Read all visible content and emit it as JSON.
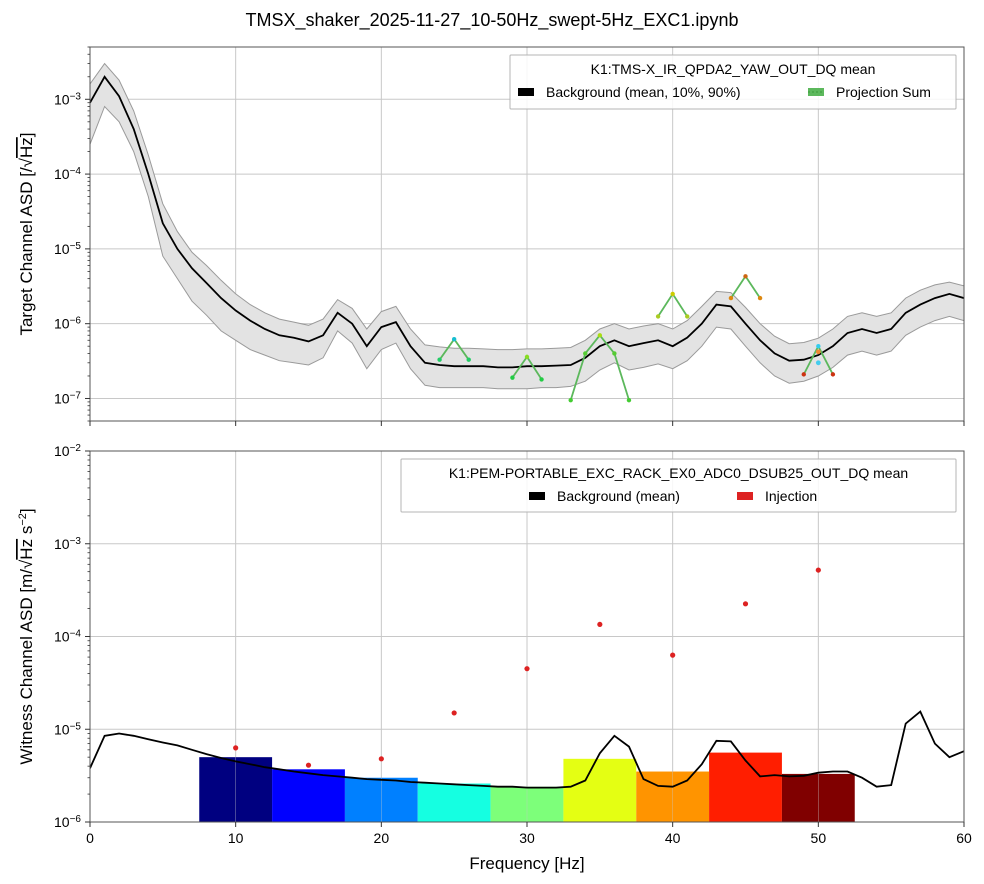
{
  "figure": {
    "title": "TMSX_shaker_2025-11-27_10-50Hz_swept-5Hz_EXC1.ipynb"
  },
  "chart_data": [
    {
      "type": "line",
      "panel": "top",
      "ylabel_main": "Target Channel ASD [/",
      "ylabel_sqrt": "Hz",
      "ylabel_end": "]",
      "xlim": [
        0,
        60
      ],
      "ylim": [
        5e-08,
        0.005
      ],
      "yscale": "log",
      "grid": true,
      "y_ticks": [
        {
          "base": "10",
          "exp": "−7",
          "v": 1e-07
        },
        {
          "base": "10",
          "exp": "−6",
          "v": 1e-06
        },
        {
          "base": "10",
          "exp": "−5",
          "v": 1e-05
        },
        {
          "base": "10",
          "exp": "−4",
          "v": 0.0001
        },
        {
          "base": "10",
          "exp": "−3",
          "v": 0.001
        }
      ],
      "legend": {
        "placement": "top-right",
        "title": "K1:TMS-X_IR_QPDA2_YAW_OUT_DQ mean",
        "entries": [
          {
            "label": "Background (mean, 10%, 90%)",
            "color": "#000000"
          },
          {
            "label": "Projection Sum",
            "color": "#5cb85c"
          }
        ]
      },
      "background": {
        "x": [
          0,
          1,
          2,
          3,
          4,
          5,
          6,
          7,
          8,
          9,
          10,
          11,
          12,
          13,
          14,
          15,
          16,
          17,
          18,
          19,
          20,
          21,
          22,
          23,
          24,
          25,
          26,
          27,
          28,
          29,
          30,
          31,
          32,
          33,
          34,
          35,
          36,
          37,
          38,
          39,
          40,
          41,
          42,
          43,
          44,
          45,
          46,
          47,
          48,
          49,
          50,
          51,
          52,
          53,
          54,
          55,
          56,
          57,
          58,
          59,
          60
        ],
        "mean": [
          0.0009,
          0.002,
          0.0011,
          0.0004,
          0.0001,
          2.2e-05,
          1e-05,
          5.5e-06,
          3.5e-06,
          2.2e-06,
          1.5e-06,
          1.1e-06,
          8.5e-07,
          7e-07,
          6.5e-07,
          5.8e-07,
          7e-07,
          1.4e-06,
          1e-06,
          5e-07,
          9e-07,
          1.05e-06,
          5e-07,
          3e-07,
          2.8e-07,
          2.7e-07,
          2.7e-07,
          2.7e-07,
          2.6e-07,
          2.6e-07,
          2.7e-07,
          2.7e-07,
          2.75e-07,
          2.8e-07,
          3.5e-07,
          5e-07,
          6e-07,
          5e-07,
          5.5e-07,
          6e-07,
          5e-07,
          6.5e-07,
          1e-06,
          1.8e-06,
          1.7e-06,
          1e-06,
          6e-07,
          4e-07,
          3.2e-07,
          3.3e-07,
          3.8e-07,
          5e-07,
          7.5e-07,
          8.5e-07,
          7.5e-07,
          8.5e-07,
          1.4e-06,
          1.8e-06,
          2.2e-06,
          2.5e-06,
          2.2e-06
        ],
        "p10": [
          0.00025,
          0.0008,
          0.0005,
          0.0002,
          5e-05,
          8e-06,
          4e-06,
          2e-06,
          1.3e-06,
          8e-07,
          6e-07,
          4.5e-07,
          3.8e-07,
          3.2e-07,
          3e-07,
          2.8e-07,
          3.5e-07,
          8e-07,
          5.5e-07,
          2.5e-07,
          4.5e-07,
          5.5e-07,
          2.5e-07,
          1.5e-07,
          1.4e-07,
          1.4e-07,
          1.4e-07,
          1.4e-07,
          1.35e-07,
          1.35e-07,
          1.35e-07,
          1.4e-07,
          1.4e-07,
          1.45e-07,
          1.7e-07,
          2.4e-07,
          3e-07,
          2.4e-07,
          2.6e-07,
          2.9e-07,
          2.5e-07,
          3.2e-07,
          5e-07,
          9e-07,
          8.5e-07,
          5e-07,
          3e-07,
          2e-07,
          1.6e-07,
          1.7e-07,
          2e-07,
          2.6e-07,
          3.8e-07,
          4.3e-07,
          3.8e-07,
          4.3e-07,
          7e-07,
          9e-07,
          1.1e-06,
          1.25e-06,
          1.1e-06
        ],
        "p90": [
          0.0016,
          0.003,
          0.0018,
          0.0007,
          0.00018,
          4e-05,
          1.7e-05,
          9e-06,
          6e-06,
          3.8e-06,
          2.5e-06,
          1.8e-06,
          1.4e-06,
          1.15e-06,
          1.05e-06,
          9.5e-07,
          1.15e-06,
          2.1e-06,
          1.6e-06,
          8.5e-07,
          1.45e-06,
          1.7e-06,
          8.5e-07,
          5.2e-07,
          4.9e-07,
          4.7e-07,
          4.7e-07,
          4.6e-07,
          4.5e-07,
          4.5e-07,
          4.6e-07,
          4.6e-07,
          4.7e-07,
          4.8e-07,
          6e-07,
          8.5e-07,
          1e-06,
          8.5e-07,
          9.3e-07,
          1e-06,
          8.5e-07,
          1.1e-06,
          1.7e-06,
          2.7e-06,
          2.6e-06,
          1.65e-06,
          1e-06,
          6.8e-07,
          5.4e-07,
          5.6e-07,
          6.4e-07,
          8.5e-07,
          1.25e-06,
          1.4e-06,
          1.25e-06,
          1.4e-06,
          2.2e-06,
          2.8e-06,
          3.3e-06,
          3.6e-06,
          3.2e-06
        ]
      },
      "projection_groups": [
        {
          "x": [
            24,
            25,
            26
          ],
          "y": [
            3.3e-07,
            6.2e-07,
            3.3e-07
          ],
          "dot_colors": [
            "#22cc66",
            "#17bed0",
            "#22cc66"
          ]
        },
        {
          "x": [
            29,
            30,
            31
          ],
          "y": [
            1.9e-07,
            3.6e-07,
            1.8e-07
          ],
          "dot_colors": [
            "#22cc44",
            "#88dd22",
            "#22cc44"
          ]
        },
        {
          "x": [
            33,
            34,
            35,
            36,
            37
          ],
          "y": [
            9.5e-08,
            4e-07,
            7e-07,
            4e-07,
            9.5e-08
          ],
          "dot_colors": [
            "#44cc33",
            "#55cc33",
            "#aadd11",
            "#55cc33",
            "#44cc33"
          ]
        },
        {
          "x": [
            39,
            40,
            41
          ],
          "y": [
            1.25e-06,
            2.5e-06,
            1.25e-06
          ],
          "dot_colors": [
            "#aacc22",
            "#cccc00",
            "#aacc22"
          ]
        },
        {
          "x": [
            44,
            45,
            46
          ],
          "y": [
            2.2e-06,
            4.3e-06,
            2.2e-06
          ],
          "dot_colors": [
            "#dd8811",
            "#cc6611",
            "#dd8811"
          ]
        },
        {
          "x": [
            49,
            50,
            51
          ],
          "y": [
            2.1e-07,
            5e-07,
            2.1e-07
          ],
          "dot_colors": [
            "#cc3311",
            "#33ccee",
            "#cc3311"
          ]
        }
      ],
      "extra_points": [
        {
          "x": 50,
          "y": 3e-07,
          "color": "#44ccee"
        },
        {
          "x": 50,
          "y": 4.2e-07,
          "color": "#ee8833"
        }
      ]
    },
    {
      "type": "bar",
      "panel": "bottom",
      "ylabel_main": "Witness Channel ASD [m/",
      "ylabel_sqrt": "Hz",
      "ylabel_s": "s",
      "ylabel_exp": "−2",
      "ylabel_end": "]",
      "xlabel": "Frequency [Hz]",
      "xlim": [
        0,
        60
      ],
      "ylim": [
        1e-06,
        0.01
      ],
      "yscale": "log",
      "grid": true,
      "x_ticks": [
        {
          "v": 0,
          "label": "0"
        },
        {
          "v": 10,
          "label": "10"
        },
        {
          "v": 20,
          "label": "20"
        },
        {
          "v": 30,
          "label": "30"
        },
        {
          "v": 40,
          "label": "40"
        },
        {
          "v": 50,
          "label": "50"
        },
        {
          "v": 60,
          "label": "60"
        }
      ],
      "y_ticks": [
        {
          "base": "10",
          "exp": "−6",
          "v": 1e-06
        },
        {
          "base": "10",
          "exp": "−5",
          "v": 1e-05
        },
        {
          "base": "10",
          "exp": "−4",
          "v": 0.0001
        },
        {
          "base": "10",
          "exp": "−3",
          "v": 0.001
        },
        {
          "base": "10",
          "exp": "−2",
          "v": 0.01
        }
      ],
      "legend": {
        "placement": "top-right",
        "title": "K1:PEM-PORTABLE_EXC_RACK_EX0_ADC0_DSUB25_OUT_DQ mean",
        "entries": [
          {
            "label": "Background (mean)",
            "color": "#000000"
          },
          {
            "label": "Injection",
            "color": "#dd2222"
          }
        ]
      },
      "background": {
        "x": [
          0,
          1,
          2,
          3,
          4,
          5,
          6,
          7,
          8,
          9,
          10,
          11,
          12,
          13,
          14,
          15,
          16,
          17,
          18,
          19,
          20,
          21,
          22,
          23,
          24,
          25,
          26,
          27,
          28,
          29,
          30,
          31,
          32,
          33,
          34,
          35,
          36,
          37,
          38,
          39,
          40,
          41,
          42,
          43,
          44,
          45,
          46,
          47,
          48,
          49,
          50,
          51,
          52,
          53,
          54,
          55,
          56,
          57,
          58,
          59,
          60
        ],
        "mean": [
          3.8e-06,
          8.5e-06,
          9e-06,
          8.5e-06,
          7.8e-06,
          7.2e-06,
          6.7e-06,
          6e-06,
          5.4e-06,
          4.9e-06,
          4.5e-06,
          4.2e-06,
          3.9e-06,
          3.7e-06,
          3.5e-06,
          3.35e-06,
          3.2e-06,
          3.1e-06,
          3e-06,
          2.9e-06,
          2.85e-06,
          2.8e-06,
          2.7e-06,
          2.65e-06,
          2.6e-06,
          2.55e-06,
          2.5e-06,
          2.45e-06,
          2.4e-06,
          2.4e-06,
          2.35e-06,
          2.35e-06,
          2.35e-06,
          2.4e-06,
          2.8e-06,
          5.5e-06,
          8.5e-06,
          6.5e-06,
          2.9e-06,
          2.45e-06,
          2.4e-06,
          2.8e-06,
          4.2e-06,
          7.5e-06,
          7.4e-06,
          4.6e-06,
          3.1e-06,
          3.2e-06,
          3.1e-06,
          3.15e-06,
          3.4e-06,
          3.5e-06,
          3.5e-06,
          3e-06,
          2.4e-06,
          2.5e-06,
          1.15e-05,
          1.55e-05,
          7e-06,
          5e-06,
          5.8e-06
        ]
      },
      "injection_bars": [
        {
          "x0": 7.5,
          "x1": 12.5,
          "value": 5e-06,
          "color": "#000080"
        },
        {
          "x0": 12.5,
          "x1": 17.5,
          "value": 3.7e-06,
          "color": "#0000ff"
        },
        {
          "x0": 17.5,
          "x1": 22.5,
          "value": 3e-06,
          "color": "#0080ff"
        },
        {
          "x0": 22.5,
          "x1": 27.5,
          "value": 2.6e-06,
          "color": "#15ffe1"
        },
        {
          "x0": 27.5,
          "x1": 32.5,
          "value": 2.4e-06,
          "color": "#7dff7a"
        },
        {
          "x0": 32.5,
          "x1": 37.5,
          "value": 4.8e-06,
          "color": "#e4ff13"
        },
        {
          "x0": 37.5,
          "x1": 42.5,
          "value": 3.5e-06,
          "color": "#ff9400"
        },
        {
          "x0": 42.5,
          "x1": 47.5,
          "value": 5.6e-06,
          "color": "#ff1e00"
        },
        {
          "x0": 47.5,
          "x1": 52.5,
          "value": 3.3e-06,
          "color": "#800000"
        }
      ],
      "injection_points": {
        "x": [
          10,
          15,
          20,
          25,
          30,
          35,
          40,
          45,
          50
        ],
        "y": [
          6.3e-06,
          4.1e-06,
          4.8e-06,
          1.5e-05,
          4.5e-05,
          0.000135,
          6.3e-05,
          0.000225,
          0.00052
        ],
        "color": "#dd2222"
      }
    }
  ]
}
